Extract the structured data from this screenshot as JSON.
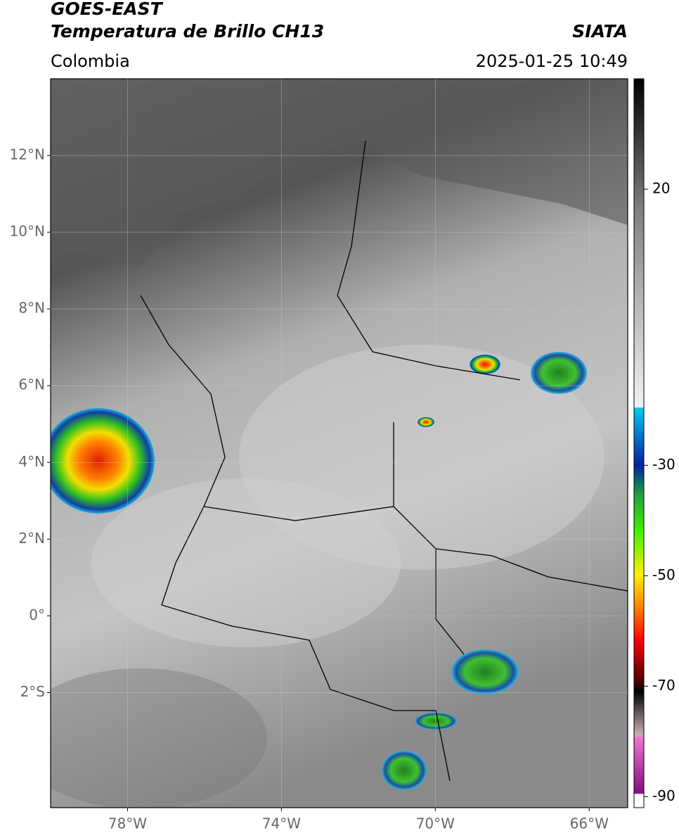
{
  "header": {
    "title": "GOES-EAST",
    "subtitle": "Temperatura de Brillo CH13",
    "region": "Colombia",
    "source": "SIATA",
    "datetime": "2025-01-25 10:49"
  },
  "map": {
    "xlim": [
      -80,
      -65
    ],
    "ylim": [
      -5,
      14
    ],
    "xticks": [
      {
        "value": -78,
        "label": "78°W"
      },
      {
        "value": -74,
        "label": "74°W"
      },
      {
        "value": -70,
        "label": "70°W"
      },
      {
        "value": -66,
        "label": "66°W"
      }
    ],
    "yticks": [
      {
        "value": 12,
        "label": "12°N"
      },
      {
        "value": 10,
        "label": "10°N"
      },
      {
        "value": 8,
        "label": "8°N"
      },
      {
        "value": 6,
        "label": "6°N"
      },
      {
        "value": 4,
        "label": "4°N"
      },
      {
        "value": 2,
        "label": "2°N"
      },
      {
        "value": 0,
        "label": "0°"
      },
      {
        "value": -2,
        "label": "2°S"
      }
    ],
    "grid": true
  },
  "colorbar": {
    "lim": [
      -92,
      40
    ],
    "ticks": [
      20,
      -30,
      -50,
      -70,
      -90
    ]
  }
}
